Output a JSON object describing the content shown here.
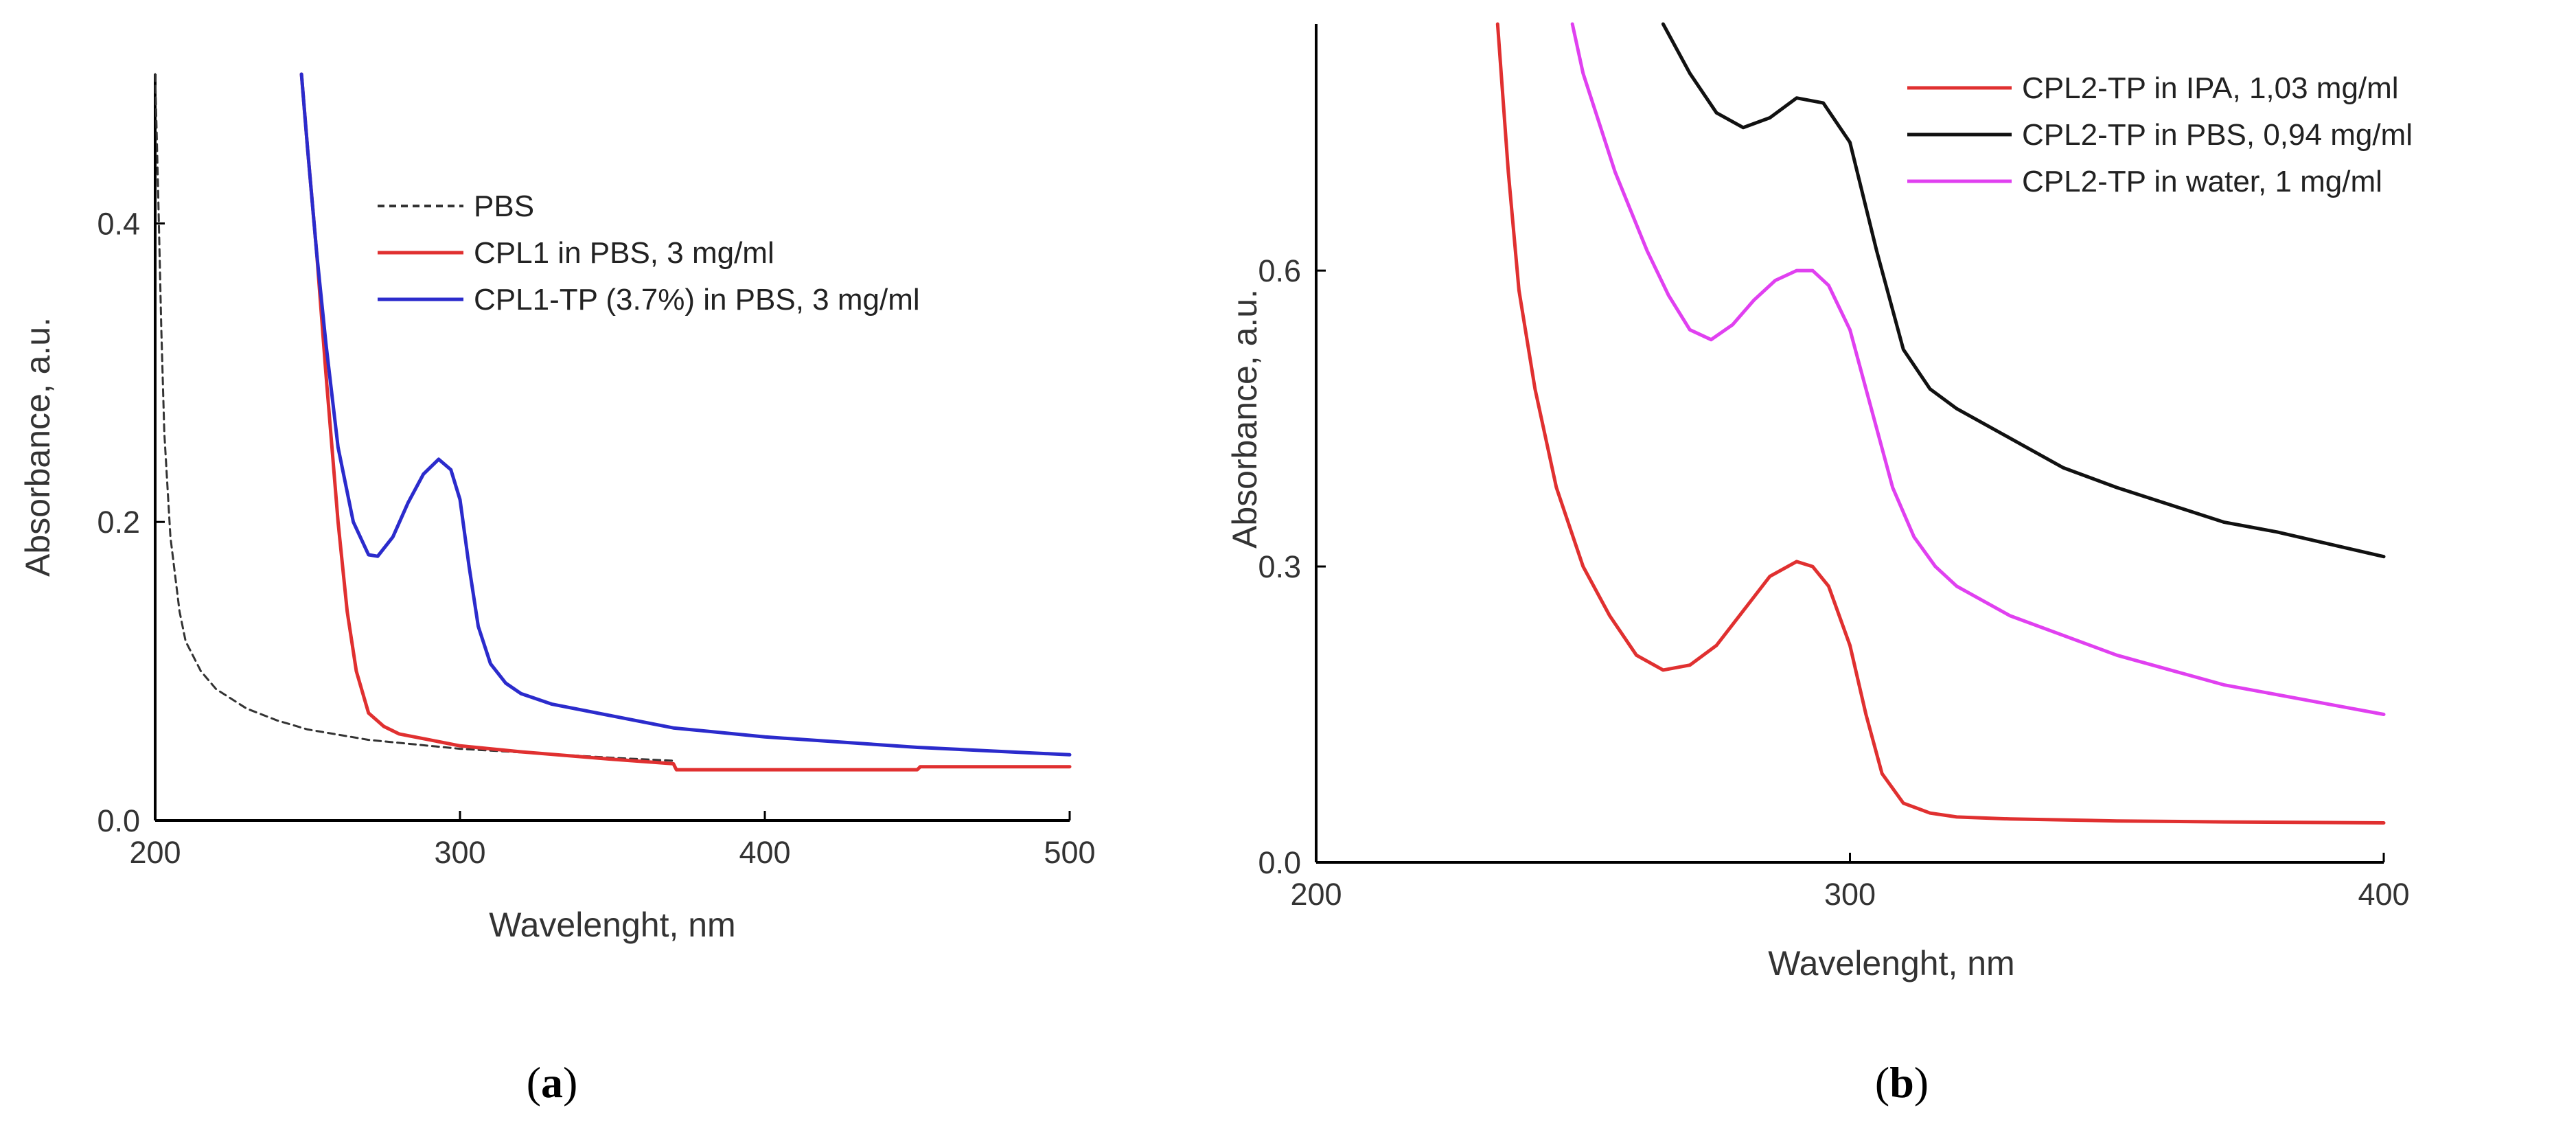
{
  "chart_data": [
    {
      "type": "line",
      "panel_label": "a",
      "xlabel": "Wavelenght, nm",
      "ylabel": "Absorbance, a.u.",
      "xlim": [
        200,
        500
      ],
      "ylim": [
        0,
        0.5
      ],
      "xticks": [
        200,
        300,
        400,
        500
      ],
      "yticks": [
        0.0,
        0.2,
        0.4
      ],
      "xtick_labels": [
        "200",
        "300",
        "400",
        "500"
      ],
      "ytick_labels": [
        "0.0",
        "0.2",
        "0.4"
      ],
      "legend_position": "top-right",
      "series": [
        {
          "name": "PBS",
          "color": "#333333",
          "dashed": true,
          "x": [
            200,
            201,
            202,
            203,
            205,
            208,
            210,
            215,
            220,
            230,
            240,
            250,
            270,
            300,
            350,
            370
          ],
          "y": [
            0.5,
            0.42,
            0.33,
            0.26,
            0.19,
            0.14,
            0.12,
            0.1,
            0.088,
            0.075,
            0.067,
            0.061,
            0.054,
            0.048,
            0.042,
            0.04
          ]
        },
        {
          "name": "CPL1 in PBS, 3 mg/ml",
          "color": "#e03030",
          "dashed": false,
          "x": [
            248,
            250,
            253,
            256,
            260,
            263,
            266,
            270,
            275,
            280,
            290,
            300,
            320,
            350,
            370,
            371,
            400,
            450,
            451,
            500
          ],
          "y": [
            0.5,
            0.45,
            0.38,
            0.3,
            0.2,
            0.14,
            0.1,
            0.072,
            0.063,
            0.058,
            0.054,
            0.05,
            0.046,
            0.041,
            0.038,
            0.034,
            0.034,
            0.034,
            0.036,
            0.036
          ]
        },
        {
          "name": "CPL1-TP (3.7%) in PBS, 3 mg/ml",
          "color": "#2b2bcc",
          "dashed": false,
          "x": [
            248,
            250,
            253,
            256,
            260,
            265,
            270,
            273,
            278,
            283,
            288,
            293,
            297,
            300,
            303,
            306,
            310,
            315,
            320,
            330,
            350,
            370,
            400,
            450,
            500
          ],
          "y": [
            0.5,
            0.45,
            0.38,
            0.32,
            0.25,
            0.2,
            0.178,
            0.177,
            0.19,
            0.213,
            0.232,
            0.242,
            0.235,
            0.215,
            0.17,
            0.13,
            0.105,
            0.092,
            0.085,
            0.078,
            0.07,
            0.062,
            0.056,
            0.049,
            0.044
          ]
        }
      ]
    },
    {
      "type": "line",
      "panel_label": "b",
      "xlabel": "Wavelenght, nm",
      "ylabel": "Absorbance, a.u.",
      "xlim": [
        200,
        400
      ],
      "ylim": [
        0,
        0.85
      ],
      "xticks": [
        200,
        300,
        400
      ],
      "yticks": [
        0.0,
        0.3,
        0.6
      ],
      "xtick_labels": [
        "200",
        "300",
        "400"
      ],
      "ytick_labels": [
        "0.0",
        "0.3",
        "0.6"
      ],
      "legend_position": "top-right",
      "series": [
        {
          "name": "CPL2-TP in IPA, 1,03  mg/ml",
          "color": "#e03030",
          "dashed": false,
          "x": [
            234,
            236,
            238,
            241,
            245,
            250,
            255,
            260,
            265,
            270,
            275,
            280,
            285,
            290,
            293,
            296,
            300,
            303,
            306,
            310,
            315,
            320,
            330,
            350,
            370,
            400
          ],
          "y": [
            0.85,
            0.7,
            0.58,
            0.48,
            0.38,
            0.3,
            0.25,
            0.21,
            0.195,
            0.2,
            0.22,
            0.255,
            0.29,
            0.305,
            0.3,
            0.28,
            0.22,
            0.15,
            0.09,
            0.06,
            0.05,
            0.046,
            0.044,
            0.042,
            0.041,
            0.04
          ]
        },
        {
          "name": "CPL2-TP in PBS, 0,94  mg/ml",
          "color": "#111111",
          "dashed": false,
          "x": [
            265,
            270,
            275,
            280,
            285,
            290,
            295,
            300,
            305,
            310,
            315,
            320,
            330,
            340,
            350,
            370,
            380,
            400
          ],
          "y": [
            0.85,
            0.8,
            0.76,
            0.745,
            0.755,
            0.775,
            0.77,
            0.73,
            0.62,
            0.52,
            0.48,
            0.46,
            0.43,
            0.4,
            0.38,
            0.345,
            0.335,
            0.31
          ]
        },
        {
          "name": "CPL2-TP in water, 1 mg/ml",
          "color": "#e040f0",
          "dashed": false,
          "x": [
            248,
            250,
            253,
            256,
            259,
            262,
            266,
            270,
            274,
            278,
            282,
            286,
            290,
            293,
            296,
            300,
            304,
            308,
            312,
            316,
            320,
            330,
            350,
            370,
            400
          ],
          "y": [
            0.85,
            0.8,
            0.75,
            0.7,
            0.66,
            0.62,
            0.575,
            0.54,
            0.53,
            0.545,
            0.57,
            0.59,
            0.6,
            0.6,
            0.585,
            0.54,
            0.46,
            0.38,
            0.33,
            0.3,
            0.28,
            0.25,
            0.21,
            0.18,
            0.15
          ]
        }
      ]
    }
  ]
}
